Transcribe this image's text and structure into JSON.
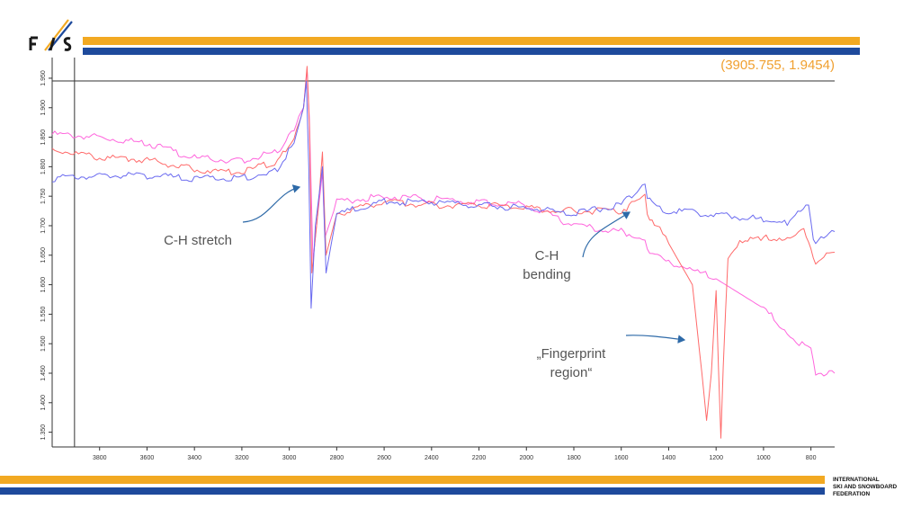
{
  "brand": {
    "logo_text": "FIS",
    "org_lines": [
      "INTERNATIONAL",
      "SKI AND SNOWBOARD",
      "FEDERATION"
    ],
    "colors": {
      "gold": "#f2a922",
      "blue": "#1e4a9c"
    }
  },
  "cursor_readout": "(3905.755, 1.9454)",
  "annotations": {
    "ch_stretch": "C-H stretch",
    "ch_bending_1": "C-H",
    "ch_bending_2": "bending",
    "fingerprint_1": "„Fingerprint",
    "fingerprint_2": "region“"
  },
  "chart_data": {
    "type": "line",
    "title": "",
    "xlabel": "",
    "ylabel": "",
    "xlim": [
      4000,
      700
    ],
    "ylim": [
      1.325,
      1.985
    ],
    "x_reversed": true,
    "x_ticks": [
      3800,
      3600,
      3400,
      3200,
      3000,
      2800,
      2600,
      2400,
      2200,
      2000,
      1800,
      1600,
      1400,
      1200,
      1000,
      800
    ],
    "y_ticks": [
      "1.350",
      "1.400",
      "1.450",
      "1.500",
      "1.550",
      "1.600",
      "1.650",
      "1.700",
      "1.750",
      "1.800",
      "1.850",
      "1.900",
      "1.950"
    ],
    "cursor": {
      "x": 3905.755,
      "y": 1.9454
    },
    "series": [
      {
        "color": "#ff66dd",
        "points": [
          [
            4000,
            1.855
          ],
          [
            3800,
            1.85
          ],
          [
            3600,
            1.84
          ],
          [
            3400,
            1.815
          ],
          [
            3200,
            1.81
          ],
          [
            3050,
            1.825
          ],
          [
            2980,
            1.86
          ],
          [
            2940,
            1.9
          ],
          [
            2925,
            1.965
          ],
          [
            2915,
            1.88
          ],
          [
            2900,
            1.64
          ],
          [
            2880,
            1.72
          ],
          [
            2860,
            1.79
          ],
          [
            2850,
            1.68
          ],
          [
            2800,
            1.74
          ],
          [
            2600,
            1.75
          ],
          [
            2400,
            1.745
          ],
          [
            2200,
            1.74
          ],
          [
            2000,
            1.735
          ],
          [
            1800,
            1.7
          ],
          [
            1600,
            1.69
          ],
          [
            1500,
            1.68
          ],
          [
            1480,
            1.65
          ],
          [
            1400,
            1.64
          ],
          [
            1200,
            1.61
          ],
          [
            1000,
            1.56
          ],
          [
            900,
            1.52
          ],
          [
            850,
            1.5
          ],
          [
            800,
            1.49
          ],
          [
            780,
            1.45
          ],
          [
            700,
            1.45
          ]
        ]
      },
      {
        "color": "#ff6a6a",
        "points": [
          [
            4000,
            1.83
          ],
          [
            3800,
            1.815
          ],
          [
            3600,
            1.812
          ],
          [
            3400,
            1.795
          ],
          [
            3200,
            1.79
          ],
          [
            3050,
            1.81
          ],
          [
            2980,
            1.85
          ],
          [
            2940,
            1.9
          ],
          [
            2925,
            1.97
          ],
          [
            2915,
            1.87
          ],
          [
            2905,
            1.62
          ],
          [
            2880,
            1.72
          ],
          [
            2860,
            1.825
          ],
          [
            2845,
            1.65
          ],
          [
            2800,
            1.72
          ],
          [
            2600,
            1.74
          ],
          [
            2400,
            1.735
          ],
          [
            2200,
            1.735
          ],
          [
            2000,
            1.73
          ],
          [
            1800,
            1.725
          ],
          [
            1600,
            1.725
          ],
          [
            1500,
            1.75
          ],
          [
            1490,
            1.72
          ],
          [
            1450,
            1.7
          ],
          [
            1400,
            1.67
          ],
          [
            1300,
            1.6
          ],
          [
            1260,
            1.45
          ],
          [
            1240,
            1.37
          ],
          [
            1220,
            1.45
          ],
          [
            1200,
            1.59
          ],
          [
            1190,
            1.46
          ],
          [
            1180,
            1.34
          ],
          [
            1170,
            1.46
          ],
          [
            1150,
            1.65
          ],
          [
            1100,
            1.67
          ],
          [
            1000,
            1.68
          ],
          [
            900,
            1.68
          ],
          [
            830,
            1.69
          ],
          [
            800,
            1.66
          ],
          [
            780,
            1.64
          ],
          [
            700,
            1.655
          ]
        ]
      },
      {
        "color": "#6a6af0",
        "points": [
          [
            4000,
            1.78
          ],
          [
            3800,
            1.785
          ],
          [
            3600,
            1.785
          ],
          [
            3400,
            1.78
          ],
          [
            3200,
            1.78
          ],
          [
            3050,
            1.795
          ],
          [
            2980,
            1.84
          ],
          [
            2940,
            1.9
          ],
          [
            2928,
            1.945
          ],
          [
            2918,
            1.8
          ],
          [
            2908,
            1.56
          ],
          [
            2890,
            1.7
          ],
          [
            2860,
            1.8
          ],
          [
            2845,
            1.62
          ],
          [
            2800,
            1.72
          ],
          [
            2600,
            1.74
          ],
          [
            2400,
            1.74
          ],
          [
            2200,
            1.735
          ],
          [
            2000,
            1.73
          ],
          [
            1800,
            1.72
          ],
          [
            1600,
            1.735
          ],
          [
            1500,
            1.775
          ],
          [
            1490,
            1.745
          ],
          [
            1450,
            1.73
          ],
          [
            1400,
            1.725
          ],
          [
            1200,
            1.72
          ],
          [
            1000,
            1.71
          ],
          [
            900,
            1.705
          ],
          [
            810,
            1.735
          ],
          [
            790,
            1.68
          ],
          [
            780,
            1.67
          ],
          [
            700,
            1.69
          ]
        ]
      }
    ]
  }
}
